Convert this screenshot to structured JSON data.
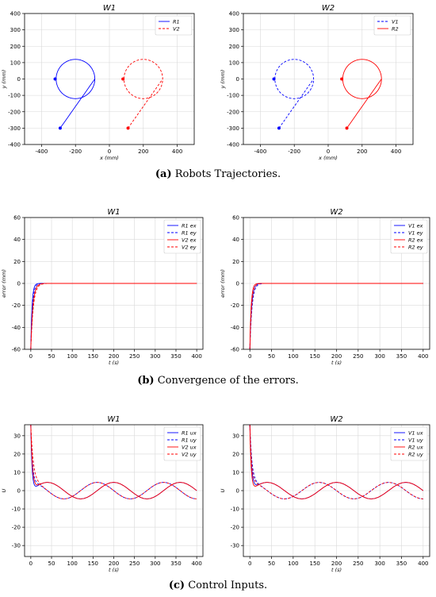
{
  "captions": {
    "a": {
      "tag": "(a)",
      "text": "Robots Trajectories."
    },
    "b": {
      "tag": "(b)",
      "text": "Convergence of the errors."
    },
    "c": {
      "tag": "(c)",
      "text": "Control Inputs."
    }
  },
  "colors": {
    "blue": "#0000ff",
    "red": "#ff0000",
    "grid": "#d9d9d9",
    "axis": "#000000"
  },
  "chart_data": [
    {
      "id": "traj-w1",
      "type": "line",
      "title": "W1",
      "xlabel": "x (mm)",
      "ylabel": "y (mm)",
      "xlim": [
        -500,
        500
      ],
      "ylim": [
        -400,
        400
      ],
      "xticks": [
        -400,
        -200,
        0,
        200,
        400
      ],
      "yticks": [
        -400,
        -300,
        -200,
        -100,
        0,
        100,
        200,
        300,
        400
      ],
      "grid": true,
      "legend_position": "top-right",
      "series": [
        {
          "name": "R1",
          "color": "#0000ff",
          "style": "solid",
          "kind": "trajectory",
          "start": [
            -290,
            -300
          ],
          "circle_center": [
            -200,
            0
          ],
          "circle_radius": 120,
          "marker_start": [
            -290,
            -300
          ],
          "marker_end": [
            -320,
            0
          ]
        },
        {
          "name": "V2",
          "color": "#ff0000",
          "style": "dashed",
          "kind": "trajectory",
          "start": [
            110,
            -300
          ],
          "circle_center": [
            200,
            0
          ],
          "circle_radius": 120,
          "marker_start": [
            110,
            -300
          ],
          "marker_end": [
            80,
            0
          ]
        }
      ]
    },
    {
      "id": "traj-w2",
      "type": "line",
      "title": "W2",
      "xlabel": "x (mm)",
      "ylabel": "y (mm)",
      "xlim": [
        -500,
        500
      ],
      "ylim": [
        -400,
        400
      ],
      "xticks": [
        -400,
        -200,
        0,
        200,
        400
      ],
      "yticks": [
        -400,
        -300,
        -200,
        -100,
        0,
        100,
        200,
        300,
        400
      ],
      "grid": true,
      "legend_position": "top-right",
      "series": [
        {
          "name": "V1",
          "color": "#0000ff",
          "style": "dashed",
          "kind": "trajectory",
          "start": [
            -290,
            -300
          ],
          "circle_center": [
            -200,
            0
          ],
          "circle_radius": 120,
          "marker_start": [
            -290,
            -300
          ],
          "marker_end": [
            -320,
            0
          ]
        },
        {
          "name": "R2",
          "color": "#ff0000",
          "style": "solid",
          "kind": "trajectory",
          "start": [
            110,
            -300
          ],
          "circle_center": [
            200,
            0
          ],
          "circle_radius": 120,
          "marker_start": [
            110,
            -300
          ],
          "marker_end": [
            80,
            0
          ]
        }
      ]
    },
    {
      "id": "err-w1",
      "type": "line",
      "title": "W1",
      "xlabel": "t (s)",
      "ylabel": "error (mm)",
      "xlim": [
        -15,
        415
      ],
      "ylim": [
        -60,
        60
      ],
      "xticks": [
        0,
        50,
        100,
        150,
        200,
        250,
        300,
        350,
        400
      ],
      "yticks": [
        -60,
        -40,
        -20,
        0,
        20,
        40,
        60
      ],
      "grid": true,
      "legend_position": "top-right",
      "series": [
        {
          "name": "R1 ex",
          "color": "#0000ff",
          "style": "solid",
          "kind": "decay",
          "y0": -60,
          "tau": 3
        },
        {
          "name": "R1 ey",
          "color": "#0000ff",
          "style": "dashed",
          "kind": "decay",
          "y0": -60,
          "tau": 4
        },
        {
          "name": "V2 ex",
          "color": "#ff0000",
          "style": "solid",
          "kind": "decay",
          "y0": -60,
          "tau": 5
        },
        {
          "name": "V2 ey",
          "color": "#ff0000",
          "style": "dashed",
          "kind": "decay",
          "y0": -60,
          "tau": 6
        }
      ]
    },
    {
      "id": "err-w2",
      "type": "line",
      "title": "W2",
      "xlabel": "t (s)",
      "ylabel": "error (mm)",
      "xlim": [
        -15,
        415
      ],
      "ylim": [
        -60,
        60
      ],
      "xticks": [
        0,
        50,
        100,
        150,
        200,
        250,
        300,
        350,
        400
      ],
      "yticks": [
        -60,
        -40,
        -20,
        0,
        20,
        40,
        60
      ],
      "grid": true,
      "legend_position": "top-right",
      "series": [
        {
          "name": "V1 ex",
          "color": "#0000ff",
          "style": "solid",
          "kind": "decay",
          "y0": -60,
          "tau": 4
        },
        {
          "name": "V1 ey",
          "color": "#0000ff",
          "style": "dashed",
          "kind": "decay",
          "y0": -60,
          "tau": 5
        },
        {
          "name": "R2 ex",
          "color": "#ff0000",
          "style": "solid",
          "kind": "decay",
          "y0": -60,
          "tau": 3
        },
        {
          "name": "R2 ey",
          "color": "#ff0000",
          "style": "dashed",
          "kind": "decay",
          "y0": -60,
          "tau": 4
        }
      ]
    },
    {
      "id": "ctl-w1",
      "type": "line",
      "title": "W1",
      "xlabel": "t (s)",
      "ylabel": "U",
      "xlim": [
        -15,
        415
      ],
      "ylim": [
        -36,
        36
      ],
      "xticks": [
        0,
        50,
        100,
        150,
        200,
        250,
        300,
        350,
        400
      ],
      "yticks": [
        -30,
        -20,
        -10,
        0,
        10,
        20,
        30
      ],
      "grid": true,
      "legend_position": "top-right",
      "series": [
        {
          "name": "R1 ux",
          "color": "#0000ff",
          "style": "solid",
          "kind": "control",
          "u0": 36,
          "tau": 3,
          "amp": 4.5,
          "period": 160,
          "phase": 0
        },
        {
          "name": "R1 uy",
          "color": "#0000ff",
          "style": "dashed",
          "kind": "control",
          "u0": 36,
          "tau": 4,
          "amp": 4.5,
          "period": 160,
          "phase": 1.5708
        },
        {
          "name": "V2 ux",
          "color": "#ff0000",
          "style": "solid",
          "kind": "control",
          "u0": 36,
          "tau": 4,
          "amp": 4.5,
          "period": 160,
          "phase": 0
        },
        {
          "name": "V2 uy",
          "color": "#ff0000",
          "style": "dashed",
          "kind": "control",
          "u0": 36,
          "tau": 6,
          "amp": 4.5,
          "period": 160,
          "phase": 1.5708
        }
      ]
    },
    {
      "id": "ctl-w2",
      "type": "line",
      "title": "W2",
      "xlabel": "t (s)",
      "ylabel": "U",
      "xlim": [
        -15,
        415
      ],
      "ylim": [
        -36,
        36
      ],
      "xticks": [
        0,
        50,
        100,
        150,
        200,
        250,
        300,
        350,
        400
      ],
      "yticks": [
        -30,
        -20,
        -10,
        0,
        10,
        20,
        30
      ],
      "grid": true,
      "legend_position": "top-right",
      "series": [
        {
          "name": "V1 ux",
          "color": "#0000ff",
          "style": "solid",
          "kind": "control",
          "u0": 36,
          "tau": 4,
          "amp": 4.5,
          "period": 160,
          "phase": 0
        },
        {
          "name": "V1 uy",
          "color": "#0000ff",
          "style": "dashed",
          "kind": "control",
          "u0": 36,
          "tau": 5,
          "amp": 4.5,
          "period": 160,
          "phase": 1.5708
        },
        {
          "name": "R2 ux",
          "color": "#ff0000",
          "style": "solid",
          "kind": "control",
          "u0": 36,
          "tau": 3,
          "amp": 4.5,
          "period": 160,
          "phase": 0
        },
        {
          "name": "R2 uy",
          "color": "#ff0000",
          "style": "dashed",
          "kind": "control",
          "u0": 36,
          "tau": 4,
          "amp": 4.5,
          "period": 160,
          "phase": 1.5708
        }
      ]
    }
  ]
}
